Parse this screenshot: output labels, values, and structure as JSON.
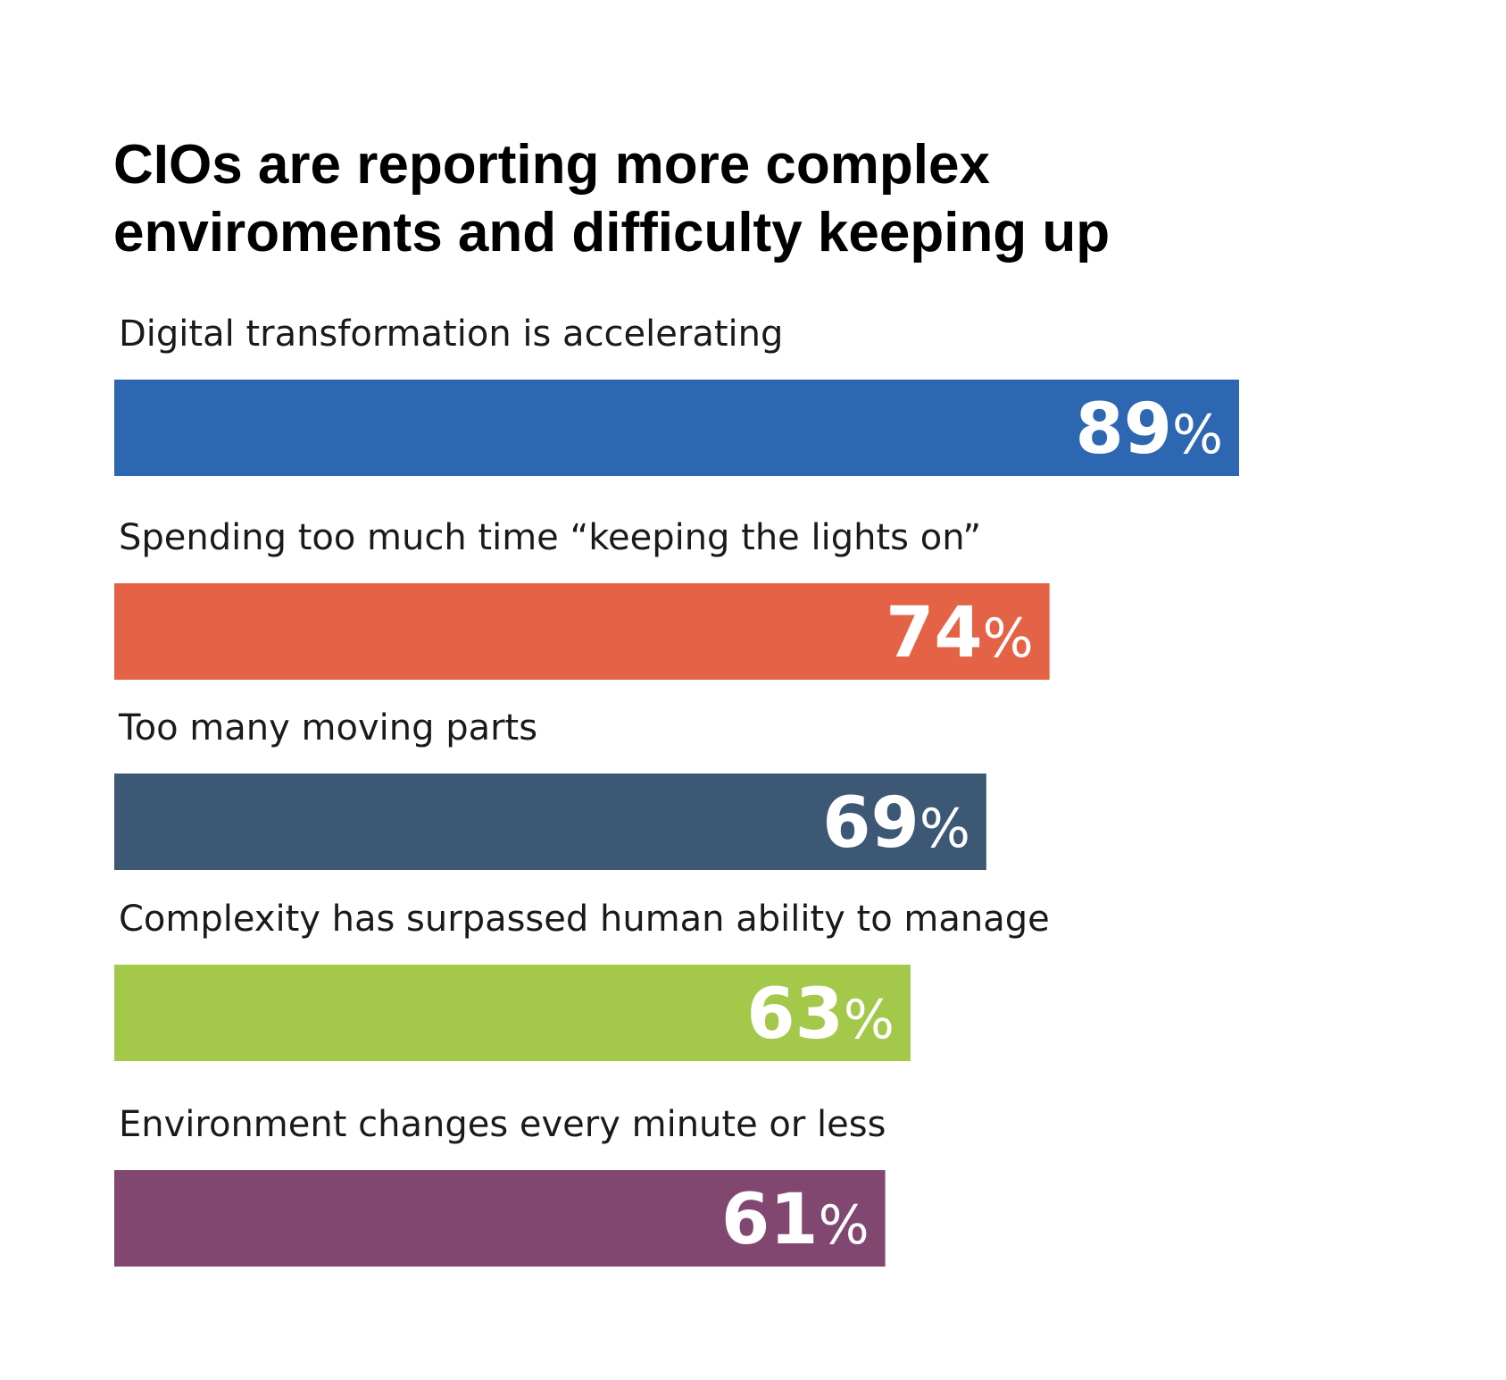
{
  "chart_data": {
    "type": "bar",
    "orientation": "horizontal",
    "title": "CIOs are reporting more complex enviroments and difficulty keeping up",
    "title_lines": [
      "CIOs are reporting more complex",
      "enviroments and difficulty keeping up"
    ],
    "categories": [
      "Digital transformation is accelerating",
      "Spending too much time “keeping the lights on”",
      "Too many moving parts",
      "Complexity has surpassed human ability to manage",
      "Environment changes every minute or less"
    ],
    "values": [
      89,
      74,
      69,
      63,
      61
    ],
    "value_suffix": "%",
    "colors": [
      "#2e67b1",
      "#e46246",
      "#3d5875",
      "#a4c84a",
      "#824770"
    ],
    "xlim": [
      0,
      100
    ],
    "grid": false,
    "legend": "none"
  }
}
